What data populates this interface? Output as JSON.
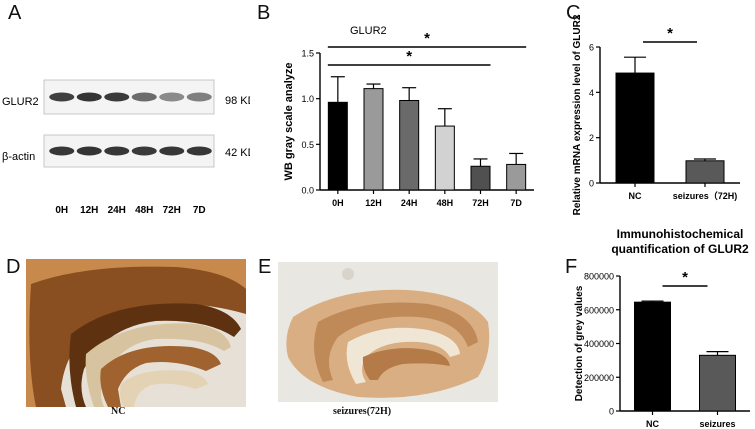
{
  "panels": {
    "a": "A",
    "b": "B",
    "c": "C",
    "d": "D",
    "e": "E",
    "f": "F"
  },
  "blot": {
    "row1_label": "GLUR2",
    "row2_label": "β-actin",
    "row1_size": "98 KD",
    "row2_size": "42 KD",
    "lanes": [
      "0H",
      "12H",
      "24H",
      "48H",
      "72H",
      "7D"
    ],
    "row1_intensity": [
      0.85,
      0.92,
      0.88,
      0.55,
      0.35,
      0.42
    ],
    "row2_intensity": [
      0.9,
      0.92,
      0.9,
      0.88,
      0.9,
      0.9
    ]
  },
  "ihc": {
    "d_caption": "NC",
    "e_caption": "seizures(72H)"
  },
  "chart_data": [
    {
      "id": "B",
      "type": "bar",
      "title": "GLUR2",
      "ylabel": "WB gray scale analyze",
      "xlabel": "",
      "categories": [
        "0H",
        "12H",
        "24H",
        "48H",
        "72H",
        "7D"
      ],
      "values": [
        0.96,
        1.11,
        0.98,
        0.7,
        0.26,
        0.28
      ],
      "errors": [
        0.28,
        0.05,
        0.14,
        0.19,
        0.08,
        0.12
      ],
      "colors": [
        "#000000",
        "#9a9a9a",
        "#6a6a6a",
        "#d2d2d2",
        "#505050",
        "#9a9a9a"
      ],
      "ylim": [
        0,
        1.5
      ],
      "yticks": [
        "0.0",
        "0.5",
        "1.0",
        "1.5"
      ],
      "significance": [
        {
          "from": "0H",
          "to": "7D",
          "label": "*"
        },
        {
          "from": "0H",
          "to": "72H",
          "label": "*"
        }
      ]
    },
    {
      "id": "C",
      "type": "bar",
      "title": "",
      "ylabel": "Relative mRNA expression level of GLUR2",
      "xlabel": "",
      "categories": [
        "NC",
        "seizures（72H)"
      ],
      "values": [
        4.85,
        0.98
      ],
      "errors": [
        0.7,
        0.08
      ],
      "colors": [
        "#000000",
        "#595959"
      ],
      "ylim": [
        0,
        6
      ],
      "yticks": [
        "0",
        "2",
        "4",
        "6"
      ],
      "significance": [
        {
          "from": "NC",
          "to": "seizures（72H)",
          "label": "*"
        }
      ]
    },
    {
      "id": "F",
      "type": "bar",
      "title": "Immunohistochemical quantification of GLUR2",
      "title_lines": [
        "Immunohistochemical",
        "quantification of GLUR2"
      ],
      "ylabel": "Detection of grey values",
      "xlabel": "",
      "categories": [
        "NC",
        "seizures"
      ],
      "values": [
        645000,
        330000
      ],
      "errors": [
        6000,
        22000
      ],
      "colors": [
        "#000000",
        "#595959"
      ],
      "ylim": [
        0,
        800000
      ],
      "yticks": [
        "0",
        "200000",
        "400000",
        "600000",
        "800000"
      ],
      "significance": [
        {
          "from": "NC",
          "to": "seizures",
          "label": "*"
        }
      ]
    }
  ]
}
